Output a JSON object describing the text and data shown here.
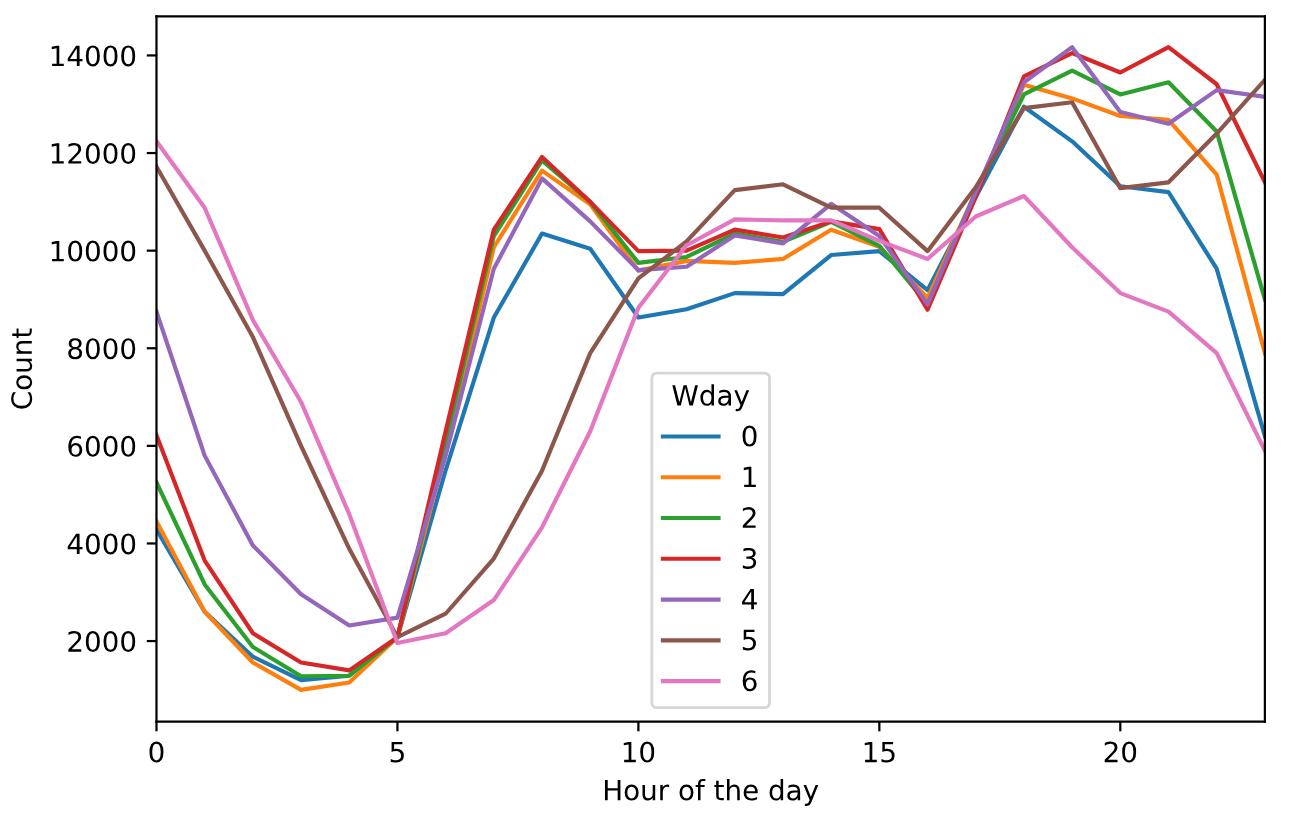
{
  "chart_data": {
    "type": "line",
    "xlabel": "Hour of the day",
    "ylabel": "Count",
    "legend_title": "Wday",
    "legend": "bottom",
    "grid": false,
    "marker": "none",
    "line_style": "solid",
    "x": [
      0,
      1,
      2,
      3,
      4,
      5,
      6,
      7,
      8,
      9,
      10,
      11,
      12,
      13,
      14,
      15,
      16,
      17,
      18,
      19,
      20,
      21,
      22,
      23
    ],
    "xlim": [
      0,
      23
    ],
    "xticks": [
      0,
      5,
      10,
      15,
      20
    ],
    "ylim": [
      350,
      14800
    ],
    "yticks": [
      2000,
      4000,
      6000,
      8000,
      10000,
      12000,
      14000
    ],
    "series": [
      {
        "name": "0",
        "color": "#1f77b4",
        "values": [
          4290,
          2600,
          1680,
          1200,
          1290,
          2080,
          5500,
          8630,
          10350,
          10040,
          8630,
          8800,
          9130,
          9110,
          9910,
          9990,
          9190,
          11100,
          12950,
          12240,
          11320,
          11200,
          9630,
          6200
        ]
      },
      {
        "name": "1",
        "color": "#ff7f0e",
        "values": [
          4450,
          2600,
          1560,
          1000,
          1150,
          2080,
          5900,
          10070,
          11640,
          10950,
          9590,
          9790,
          9750,
          9830,
          10430,
          10080,
          9030,
          11200,
          13400,
          13120,
          12760,
          12680,
          11560,
          7900
        ]
      },
      {
        "name": "2",
        "color": "#2ca02c",
        "values": [
          5250,
          3160,
          1880,
          1280,
          1290,
          2080,
          6100,
          10300,
          11850,
          11000,
          9750,
          9870,
          10350,
          10180,
          10590,
          10100,
          8900,
          11200,
          13200,
          13690,
          13200,
          13450,
          12440,
          9000
        ]
      },
      {
        "name": "3",
        "color": "#d62728",
        "values": [
          6220,
          3650,
          2160,
          1560,
          1400,
          2080,
          6300,
          10430,
          11920,
          11000,
          9990,
          10000,
          10430,
          10270,
          10600,
          10440,
          8790,
          11100,
          13570,
          14050,
          13650,
          14170,
          13410,
          11400
        ]
      },
      {
        "name": "4",
        "color": "#9467bd",
        "values": [
          8750,
          5800,
          3960,
          2960,
          2320,
          2480,
          5800,
          9630,
          11480,
          10600,
          9600,
          9670,
          10310,
          10150,
          10960,
          10300,
          8900,
          11200,
          13450,
          14170,
          12840,
          12600,
          13290,
          13150
        ]
      },
      {
        "name": "5",
        "color": "#8c564b",
        "values": [
          11720,
          10000,
          8230,
          6000,
          3890,
          2080,
          2560,
          3690,
          5490,
          7900,
          9430,
          10190,
          11240,
          11360,
          10880,
          10880,
          9990,
          11300,
          12920,
          13040,
          11280,
          11400,
          12400,
          13500
        ]
      },
      {
        "name": "6",
        "color": "#e377c2",
        "values": [
          12240,
          10880,
          8580,
          6900,
          4600,
          1960,
          2160,
          2840,
          4330,
          6300,
          8830,
          10110,
          10640,
          10620,
          10620,
          10200,
          9830,
          10700,
          11120,
          10070,
          9130,
          8750,
          7900,
          5900
        ]
      }
    ]
  }
}
